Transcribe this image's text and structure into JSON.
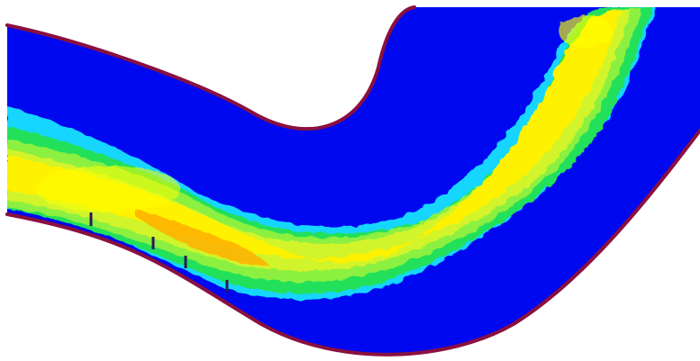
{
  "colors": {
    "background": "#ffffff",
    "channel_fill": "#0008f0",
    "channel_wall": "#8a1040",
    "cyan": "#18d6ff",
    "green": "#23e05a",
    "light_green": "#8cf040",
    "yellow_green": "#d2f42a",
    "yellow": "#fff200",
    "orange": "#ffb000",
    "probe": "#2a1a5a"
  },
  "legend": {
    "low_value_color": "#0008f0",
    "high_value_color": "#fff200"
  }
}
